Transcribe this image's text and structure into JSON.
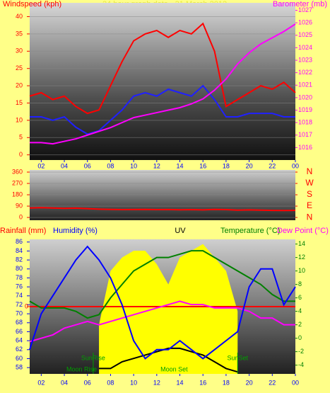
{
  "chart_data": [
    {
      "type": "line",
      "title": "24 hour graph data - 31 March 2012",
      "headers": [
        {
          "text": "Windspeed (kph)",
          "color": "#ff0000"
        },
        {
          "text": "Barometer (mb)",
          "color": "#ff00ff"
        }
      ],
      "x": [
        1,
        2,
        3,
        4,
        5,
        6,
        7,
        8,
        9,
        10,
        11,
        12,
        13,
        14,
        15,
        16,
        17,
        18,
        19,
        20,
        21,
        22,
        23,
        24
      ],
      "xlim": [
        1,
        24
      ],
      "xticks": [
        {
          "value": 2,
          "label": "02"
        },
        {
          "value": 4,
          "label": "04"
        },
        {
          "value": 6,
          "label": "06"
        },
        {
          "value": 8,
          "label": "08"
        },
        10,
        12,
        14,
        16,
        18,
        20,
        22,
        {
          "value": 24,
          "label": "00"
        }
      ],
      "ylim": [
        -1.5,
        44
      ],
      "yticks": [
        0,
        5,
        10,
        15,
        20,
        25,
        30,
        35,
        40
      ],
      "ytick_color": "#ff0000",
      "y2lim": [
        1015,
        1027.6
      ],
      "y2ticks": [
        1016,
        1017,
        1018,
        1019,
        1020,
        1021,
        1022,
        1023,
        1024,
        1025,
        1026,
        1027
      ],
      "y2tick_color": "#ff00ff",
      "grid": true,
      "series": [
        {
          "color": "#ff0000",
          "axis": "y",
          "values": [
            17,
            18,
            16,
            17,
            14,
            12,
            13,
            20,
            27,
            33,
            35,
            36,
            34,
            36,
            35,
            38,
            30,
            14,
            16,
            18,
            20,
            19,
            21,
            18
          ]
        },
        {
          "color": "#2020ff",
          "axis": "y",
          "values": [
            11,
            11,
            10,
            11,
            8,
            6,
            7,
            10,
            13,
            17,
            18,
            17,
            19,
            18,
            17,
            20,
            16,
            11,
            11,
            12,
            12,
            12,
            11,
            11
          ]
        },
        {
          "color": "#ff00ff",
          "axis": "y2",
          "values": [
            1016.4,
            1016.4,
            1016.3,
            1016.5,
            1016.7,
            1017.0,
            1017.3,
            1017.6,
            1018.0,
            1018.4,
            1018.6,
            1018.8,
            1019.0,
            1019.2,
            1019.5,
            1019.9,
            1020.6,
            1021.5,
            1022.7,
            1023.6,
            1024.3,
            1024.8,
            1025.3,
            1025.9
          ]
        }
      ]
    },
    {
      "type": "line",
      "x": [
        1,
        2,
        3,
        4,
        5,
        6,
        7,
        8,
        9,
        10,
        11,
        12,
        13,
        14,
        15,
        16,
        17,
        18,
        19,
        20,
        21,
        22,
        23,
        24
      ],
      "xlim": [
        1,
        24
      ],
      "ylim": [
        -22,
        377
      ],
      "yticks": [
        0,
        90,
        180,
        270,
        360
      ],
      "ytick_color": "#ff0000",
      "y2lim": [
        -22,
        377
      ],
      "y2ticks": [
        {
          "value": 360,
          "label": "N"
        },
        {
          "value": 270,
          "label": "W"
        },
        {
          "value": 180,
          "label": "S"
        },
        {
          "value": 90,
          "label": "E"
        },
        {
          "value": 0,
          "label": "N"
        }
      ],
      "y2tick_color": "#ff0000",
      "grid": true,
      "series": [
        {
          "color": "#ff0000",
          "axis": "y",
          "values": [
            75,
            78,
            75,
            72,
            74,
            70,
            66,
            64,
            62,
            63,
            64,
            62,
            63,
            61,
            62,
            60,
            64,
            62,
            58,
            60,
            58,
            56,
            55,
            56
          ]
        }
      ]
    },
    {
      "type": "line",
      "headers": [
        {
          "text": "Rainfall (mm)",
          "color": "#ff0000"
        },
        {
          "text": "Humidity (%)",
          "color": "#0000ff"
        },
        {
          "text": "UV",
          "color": "#000000"
        },
        {
          "text": "Temperature (°C)",
          "color": "#008000"
        },
        {
          "text": "Dew Point (°C)",
          "color": "#ff00ff"
        }
      ],
      "x": [
        1,
        2,
        3,
        4,
        5,
        6,
        7,
        8,
        9,
        10,
        11,
        12,
        13,
        14,
        15,
        16,
        17,
        18,
        19,
        20,
        21,
        22,
        23,
        24
      ],
      "xlim": [
        1,
        24
      ],
      "xticks": [
        {
          "value": 2,
          "label": "02"
        },
        {
          "value": 4,
          "label": "04"
        },
        {
          "value": 6,
          "label": "06"
        },
        {
          "value": 8,
          "label": "08"
        },
        10,
        12,
        14,
        16,
        18,
        20,
        22,
        {
          "value": 24,
          "label": "00"
        }
      ],
      "ylim": [
        56.6,
        86.6
      ],
      "yticks": [
        58,
        60,
        62,
        64,
        66,
        68,
        70,
        72,
        74,
        76,
        78,
        80,
        82,
        84,
        86
      ],
      "ytick_color": "#0000ff",
      "y2lim": [
        -5.3,
        14.7
      ],
      "y2ticks": [
        -4,
        -2,
        0,
        2,
        4,
        6,
        8,
        10,
        12,
        14
      ],
      "y2tick_color": "#008000",
      "y3lim": [
        -1,
        1
      ],
      "y3ticks": [
        0
      ],
      "y3tick_color": "#ff0000",
      "grid": false,
      "series": [
        {
          "color": "#ffff00",
          "axis": "y2",
          "style": "area",
          "values": [
            null,
            null,
            null,
            null,
            null,
            null,
            2,
            10,
            12,
            13,
            13,
            11,
            8,
            12,
            13,
            14,
            12,
            10,
            4,
            null,
            null,
            null,
            null,
            null
          ]
        },
        {
          "color": "#ff0000",
          "axis": "y3",
          "values": [
            0,
            0,
            0,
            0,
            0,
            0,
            0,
            0,
            0,
            0,
            0,
            0,
            0,
            0,
            0,
            0,
            0,
            0,
            0,
            0,
            0,
            0,
            0,
            0
          ]
        },
        {
          "color": "#000000",
          "axis": "y2",
          "values": [
            null,
            null,
            null,
            null,
            null,
            null,
            -4.5,
            -4.5,
            -3.5,
            -3,
            -2.5,
            -2,
            -1.5,
            -1.5,
            -2,
            -2.5,
            -3.5,
            -4.5,
            -5,
            null,
            null,
            null,
            null,
            null
          ]
        },
        {
          "color": "#008000",
          "axis": "y2",
          "values": [
            5.5,
            4.5,
            4.5,
            4.5,
            4,
            3,
            3.5,
            6,
            8,
            10,
            11,
            12,
            12,
            12.5,
            13,
            13,
            12,
            11,
            10,
            9,
            8,
            6.5,
            5.5,
            5.5
          ]
        },
        {
          "color": "#ff00ff",
          "axis": "y2",
          "values": [
            -0.5,
            0,
            0.5,
            1.5,
            2,
            2.5,
            2,
            2.5,
            3,
            3.5,
            4,
            4.5,
            5,
            5.5,
            5,
            5,
            4.5,
            4.5,
            4.5,
            4,
            3,
            3,
            2,
            2
          ]
        },
        {
          "color": "#0000ff",
          "axis": "y",
          "values": [
            62,
            70,
            74,
            78,
            82,
            85,
            82,
            78,
            72,
            64,
            60,
            62,
            62,
            64,
            62,
            60,
            62,
            64,
            66,
            76,
            80,
            80,
            72,
            76
          ]
        }
      ],
      "annotations": [
        {
          "text": "SunRise",
          "x": 6.5
        },
        {
          "text": "SunSet",
          "x": 19
        },
        {
          "text": "Moon Rise",
          "x": 5.5
        },
        {
          "text": "Moon Set",
          "x": 13.5
        }
      ]
    }
  ]
}
